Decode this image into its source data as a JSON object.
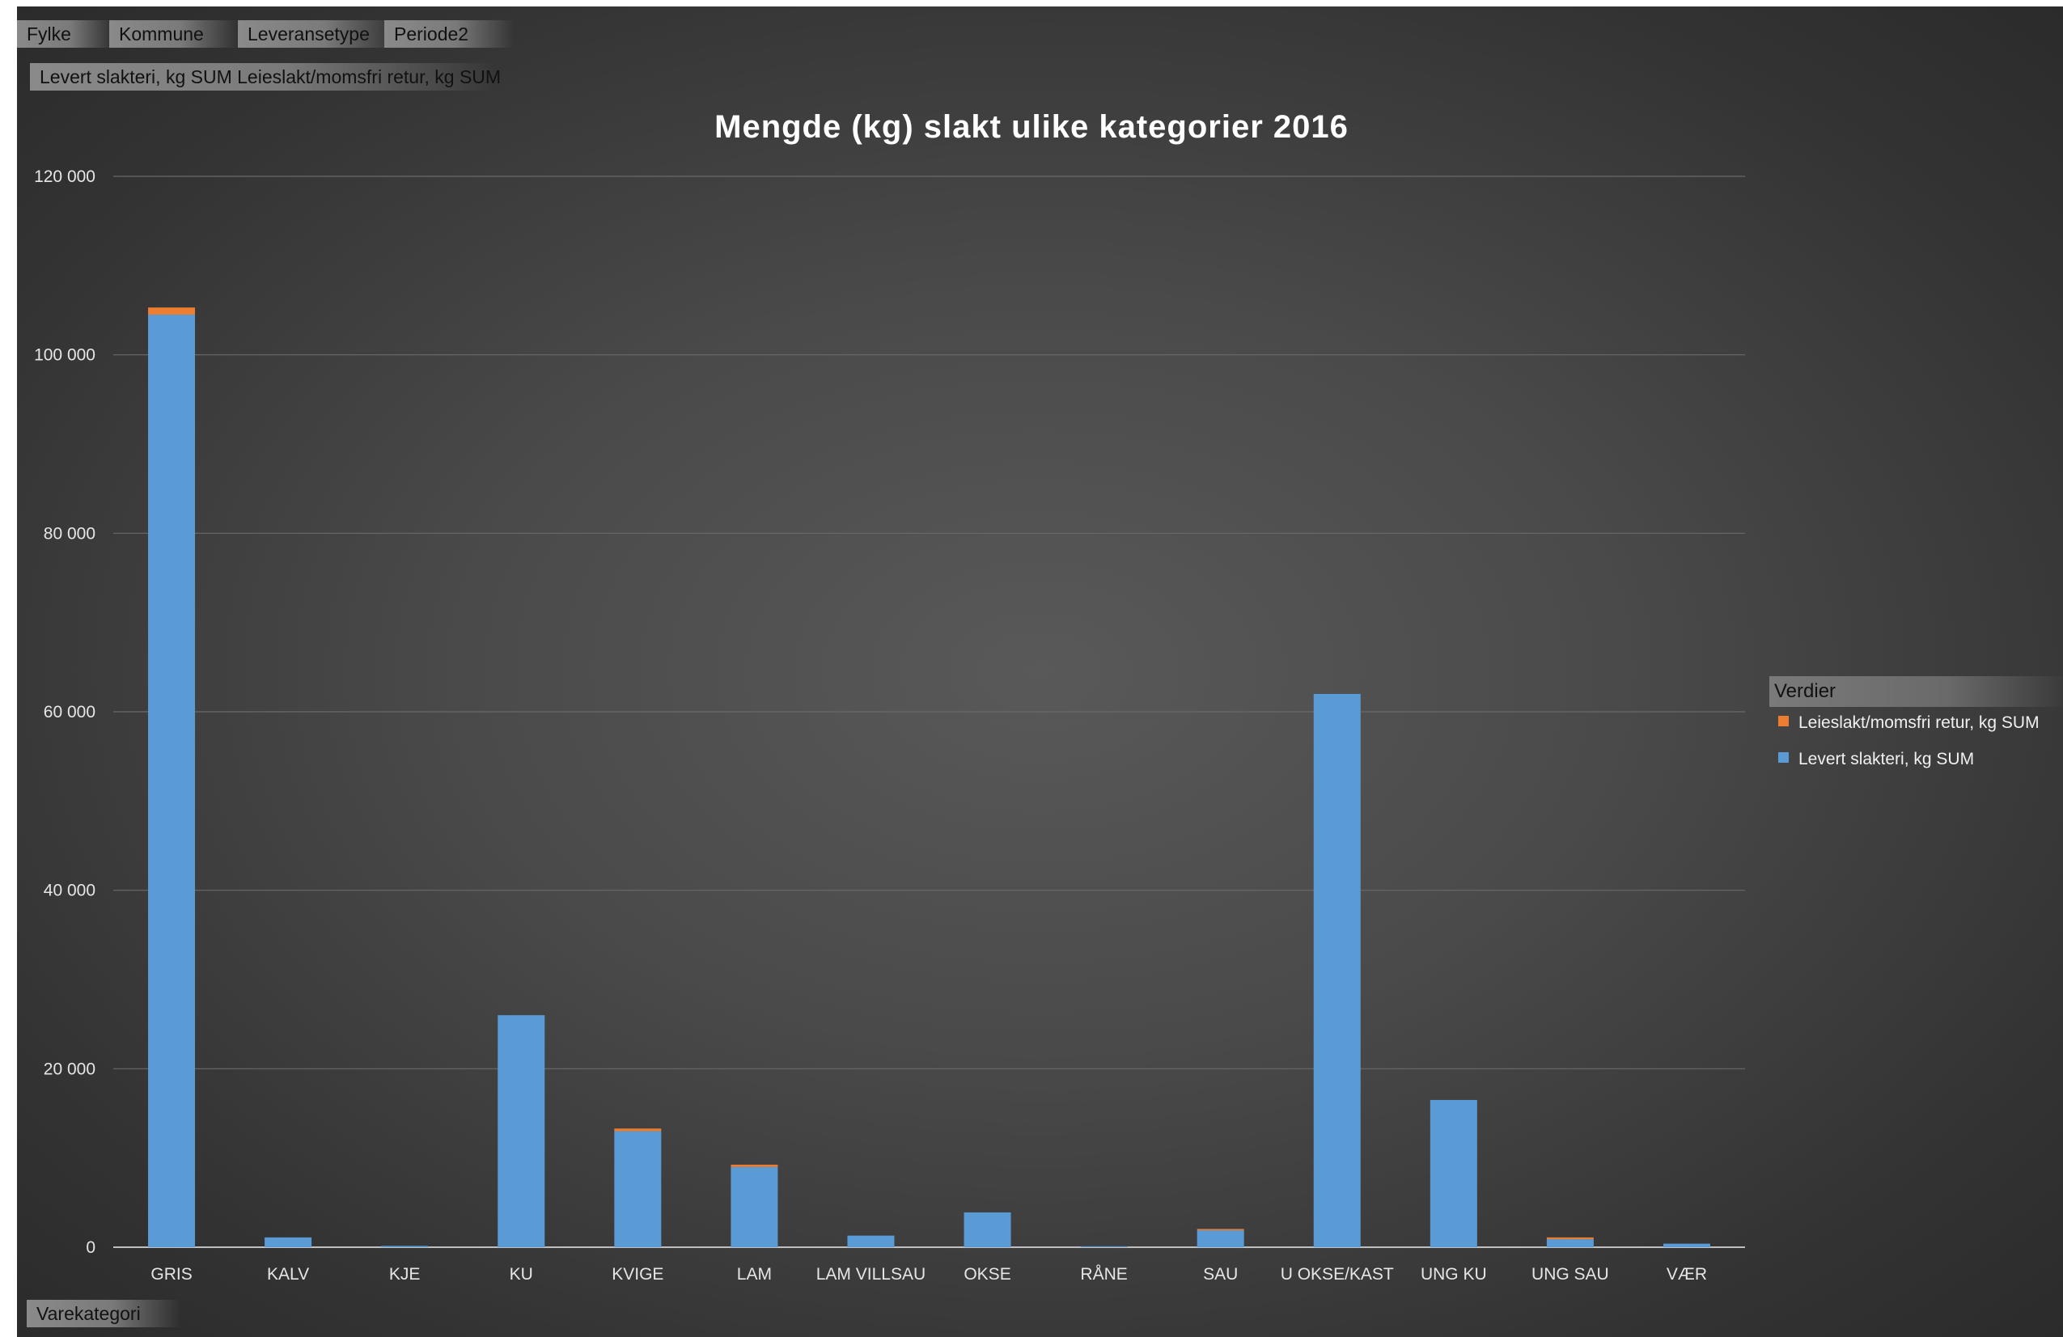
{
  "pivot_filters": [
    "Fylke",
    "Kommune",
    "Leveransetype",
    "Periode2"
  ],
  "pivot_values": "Levert slakteri, kg SUM Leieslakt/momsfri retur, kg SUM",
  "axis_field": "Varekategori",
  "legend_title": "Verdier",
  "colors": {
    "levert": "#5b9bd5",
    "leieslakt": "#ed7d31",
    "gridline": "#6a6a6a",
    "axis": "#bfbfbf"
  },
  "chart_data": {
    "type": "bar",
    "stacked": true,
    "title": "Mengde (kg) slakt ulike kategorier 2016",
    "xlabel": "",
    "ylabel": "",
    "ylim": [
      0,
      120000
    ],
    "yticks": [
      0,
      20000,
      40000,
      60000,
      80000,
      100000,
      120000
    ],
    "ytick_labels": [
      "0",
      "20 000",
      "40 000",
      "60 000",
      "80 000",
      "100 000",
      "120 000"
    ],
    "grid": true,
    "legend_position": "right",
    "categories": [
      "GRIS",
      "KALV",
      "KJE",
      "KU",
      "KVIGE",
      "LAM",
      "LAM VILLSAU",
      "OKSE",
      "RÅNE",
      "SAU",
      "U OKSE/KAST",
      "UNG KU",
      "UNG SAU",
      "VÆR"
    ],
    "series": [
      {
        "name": "Levert slakteri, kg SUM",
        "color": "#5b9bd5",
        "values": [
          104500,
          1100,
          150,
          26000,
          13000,
          9000,
          1300,
          3900,
          100,
          1900,
          62000,
          16500,
          900,
          400
        ]
      },
      {
        "name": "Leieslakt/momsfri retur, kg SUM",
        "color": "#ed7d31",
        "values": [
          800,
          0,
          0,
          0,
          300,
          250,
          0,
          0,
          0,
          150,
          0,
          0,
          200,
          0
        ]
      }
    ],
    "legend_order": [
      "Leieslakt/momsfri retur, kg SUM",
      "Levert slakteri, kg SUM"
    ]
  }
}
